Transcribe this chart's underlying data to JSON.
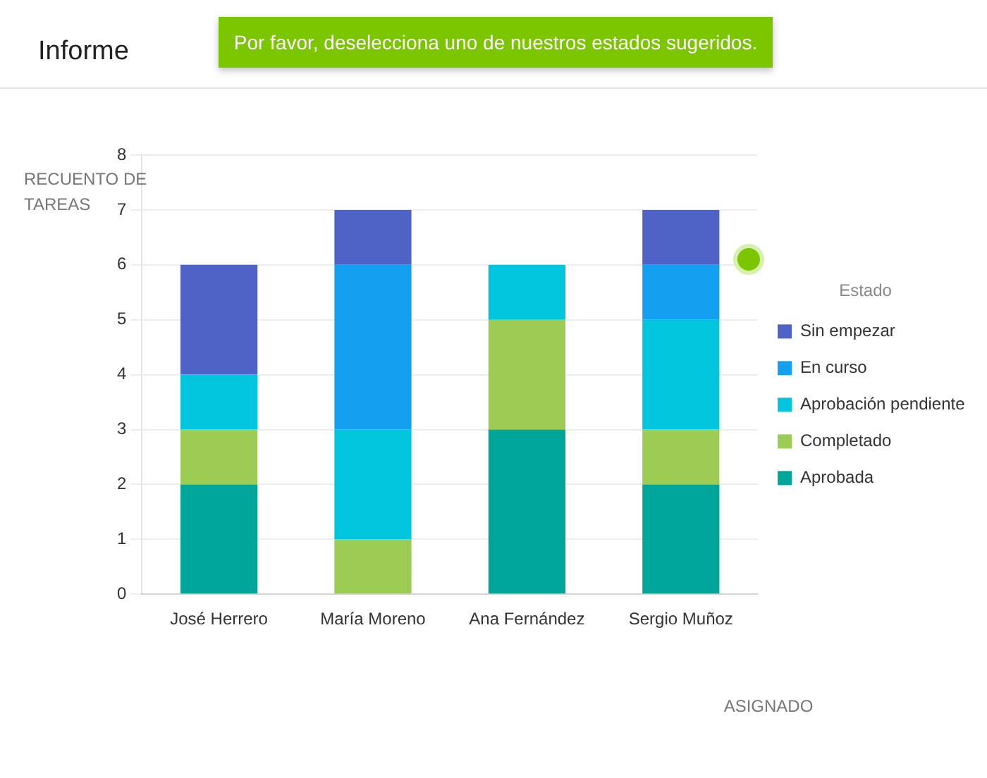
{
  "chart_data": {
    "type": "bar",
    "title": "Informe",
    "annotations": [
      "Por favor, deselecciona uno de nuestros estados sugeridos."
    ],
    "ylabel": "RECUENTO DE TAREAS",
    "xlabel": "ASIGNADO",
    "legend_title": "Estado",
    "categories": [
      "José Herrero",
      "María Moreno",
      "Ana Fernández",
      "Sergio Muñoz"
    ],
    "stacked": true,
    "series": [
      {
        "name": "Aprobada",
        "color": "#00a599",
        "values": [
          2,
          0,
          3,
          2
        ]
      },
      {
        "name": "Completado",
        "color": "#9ccc54",
        "values": [
          1,
          1,
          2,
          1
        ]
      },
      {
        "name": "Aprobación pendiente",
        "color": "#00c5dc",
        "values": [
          1,
          2,
          1,
          2
        ]
      },
      {
        "name": "En curso",
        "color": "#14a0f0",
        "values": [
          0,
          3,
          0,
          1
        ]
      },
      {
        "name": "Sin empezar",
        "color": "#4f63c6",
        "values": [
          2,
          1,
          0,
          1
        ]
      }
    ],
    "ylim": [
      0,
      8
    ],
    "yticks": [
      0,
      1,
      2,
      3,
      4,
      5,
      6,
      7,
      8
    ],
    "grid": "y",
    "legend": "right"
  }
}
